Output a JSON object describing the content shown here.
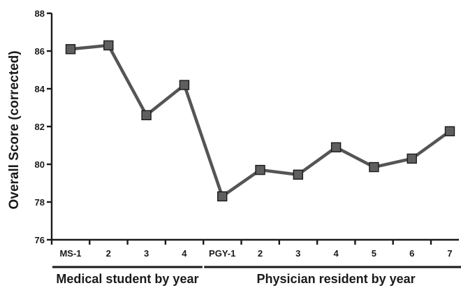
{
  "chart_data": {
    "type": "line",
    "ylabel": "Overall Score (corrected)",
    "xlabel": "",
    "ylim": [
      76,
      88
    ],
    "yticks": [
      76,
      78,
      80,
      82,
      84,
      86,
      88
    ],
    "categories": [
      "MS-1",
      "2",
      "3",
      "4",
      "PGY-1",
      "2",
      "3",
      "4",
      "5",
      "6",
      "7"
    ],
    "series": [
      {
        "values": [
          86.1,
          86.3,
          82.6,
          84.2,
          78.3,
          79.7,
          79.45,
          80.9,
          79.85,
          80.3,
          81.75
        ]
      }
    ],
    "groups": [
      {
        "label": "Medical student by year",
        "start": 0,
        "end": 3
      },
      {
        "label": "Physician resident by year",
        "start": 4,
        "end": 10
      }
    ],
    "line_color": "#555555",
    "marker_color": "#5f5f5f",
    "grid": false
  }
}
